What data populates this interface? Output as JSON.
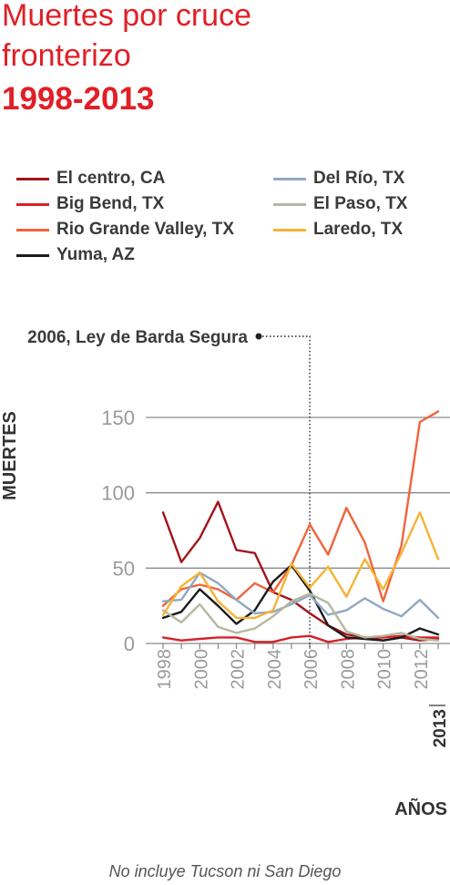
{
  "title": {
    "line1": "Muertes por cruce",
    "line2": "fronterizo",
    "line3": "1998-2013"
  },
  "footnote": "No incluye Tucson ni San Diego",
  "colors": {
    "title": "#e11f26",
    "grid": "#8a8a8a",
    "tick_text": "#9a9a9a",
    "axis_label": "#333333",
    "annotation_text": "#3a3a3a"
  },
  "chart_data": {
    "type": "line",
    "title": "Muertes por cruce fronterizo 1998-2013",
    "xlabel": "AÑOS",
    "ylabel": "MUERTES",
    "x": [
      1998,
      1999,
      2000,
      2001,
      2002,
      2003,
      2004,
      2005,
      2006,
      2007,
      2008,
      2009,
      2010,
      2011,
      2012,
      2013
    ],
    "x_tick_labels": [
      "1998",
      "2000",
      "2002",
      "2004",
      "2006",
      "2008",
      "2010",
      "2012",
      "2013"
    ],
    "y_ticks": [
      0,
      50,
      100,
      150
    ],
    "y_tick_labels": [
      "0",
      "50",
      "100",
      "150"
    ],
    "ylim": [
      0,
      155
    ],
    "xlim": [
      1998,
      2013
    ],
    "grid": true,
    "legend_position": "top",
    "annotation": {
      "x": 2006,
      "label": "2006, Ley de Barda Segura"
    },
    "series": [
      {
        "name": "El centro, CA",
        "color": "#a3141b",
        "values": [
          87,
          54,
          70,
          94,
          62,
          60,
          34,
          29,
          20,
          12,
          6,
          4,
          2,
          4,
          2,
          3
        ]
      },
      {
        "name": "Big Bend, TX",
        "color": "#d7202a",
        "values": [
          4,
          2,
          3,
          4,
          4,
          1,
          1,
          4,
          5,
          1,
          3,
          4,
          4,
          5,
          4,
          4
        ]
      },
      {
        "name": "Rio Grande Valley, TX",
        "color": "#f0643c",
        "values": [
          25,
          36,
          39,
          36,
          29,
          40,
          34,
          52,
          79,
          59,
          90,
          67,
          28,
          65,
          147,
          154
        ]
      },
      {
        "name": "Yuma, AZ",
        "color": "#1c1c1c",
        "values": [
          17,
          21,
          36,
          25,
          13,
          22,
          41,
          52,
          35,
          12,
          4,
          3,
          2,
          4,
          10,
          6
        ]
      },
      {
        "name": "Del Río, TX",
        "color": "#8fa8c4",
        "values": [
          28,
          29,
          47,
          40,
          29,
          20,
          21,
          26,
          32,
          19,
          22,
          30,
          23,
          18,
          29,
          17
        ]
      },
      {
        "name": "El Paso, TX",
        "color": "#b5b89c",
        "values": [
          22,
          14,
          26,
          11,
          7,
          10,
          18,
          28,
          33,
          27,
          8,
          4,
          5,
          7,
          3,
          2
        ]
      },
      {
        "name": "Laredo, TX",
        "color": "#f5b335",
        "values": [
          19,
          38,
          47,
          28,
          17,
          17,
          22,
          53,
          37,
          51,
          31,
          56,
          36,
          60,
          87,
          56
        ]
      }
    ]
  }
}
